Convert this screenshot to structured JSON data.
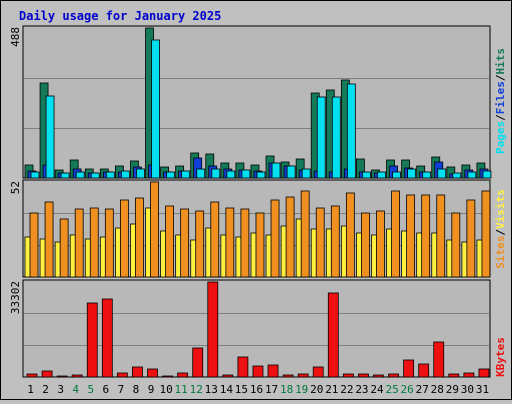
{
  "title": "Daily usage for January 2025",
  "colors": {
    "background": "#C0C0C0",
    "plot_bg": "#B8B8B8",
    "title": "#0000CC",
    "hits": "#157A5A",
    "files": "#1040D8",
    "pages": "#00E0F0",
    "visits": "#F09020",
    "sites": "#FFF040",
    "kbytes": "#EE1010",
    "weekend_label": "#007A3D",
    "grid": "#808080"
  },
  "chart_data": [
    {
      "type": "bar",
      "name": "hits-files-pages",
      "categories": [
        "1",
        "2",
        "3",
        "4",
        "5",
        "6",
        "7",
        "8",
        "9",
        "10",
        "11",
        "12",
        "13",
        "14",
        "15",
        "16",
        "17",
        "18",
        "19",
        "20",
        "21",
        "22",
        "23",
        "24",
        "25",
        "26",
        "27",
        "28",
        "29",
        "30",
        "31"
      ],
      "series": [
        {
          "name": "Hits",
          "values": [
            42,
            310,
            26,
            58,
            30,
            28,
            38,
            55,
            488,
            36,
            40,
            80,
            78,
            48,
            48,
            42,
            70,
            52,
            62,
            275,
            285,
            318,
            62,
            26,
            60,
            60,
            40,
            68,
            35,
            42,
            48
          ]
        },
        {
          "name": "Files",
          "values": [
            22,
            42,
            16,
            30,
            16,
            18,
            20,
            35,
            42,
            18,
            24,
            65,
            40,
            28,
            26,
            22,
            48,
            40,
            26,
            22,
            18,
            30,
            18,
            16,
            38,
            32,
            18,
            52,
            14,
            26,
            28
          ]
        },
        {
          "name": "Pages",
          "values": [
            20,
            268,
            16,
            18,
            16,
            18,
            22,
            28,
            450,
            18,
            22,
            30,
            30,
            22,
            26,
            20,
            48,
            38,
            30,
            262,
            262,
            305,
            18,
            20,
            18,
            30,
            20,
            30,
            16,
            20,
            22
          ]
        }
      ],
      "ylim": [
        0,
        488
      ],
      "ylabel": "488",
      "right_labels": [
        "Pages",
        "Files",
        "Hits"
      ]
    },
    {
      "type": "bar",
      "name": "visits-sites",
      "categories": [
        "1",
        "2",
        "3",
        "4",
        "5",
        "6",
        "7",
        "8",
        "9",
        "10",
        "11",
        "12",
        "13",
        "14",
        "15",
        "16",
        "17",
        "18",
        "19",
        "20",
        "21",
        "22",
        "23",
        "24",
        "25",
        "26",
        "27",
        "28",
        "29",
        "30",
        "31"
      ],
      "series": [
        {
          "name": "Sites",
          "values": [
            22,
            21,
            19,
            23,
            21,
            22,
            27,
            29,
            38,
            25,
            23,
            20,
            27,
            23,
            22,
            24,
            23,
            28,
            32,
            26,
            26,
            28,
            24,
            23,
            26,
            25,
            24,
            24,
            20,
            19,
            20
          ]
        },
        {
          "name": "Visits",
          "values": [
            35,
            41,
            32,
            37,
            38,
            37,
            42,
            43,
            52,
            39,
            37,
            36,
            41,
            38,
            37,
            35,
            42,
            44,
            47,
            38,
            39,
            46,
            35,
            36,
            47,
            45,
            45,
            45,
            35,
            42,
            47
          ]
        }
      ],
      "ylim": [
        0,
        52
      ],
      "ylabel": "52",
      "right_labels": [
        "Sites",
        "Visits"
      ]
    },
    {
      "type": "bar",
      "name": "kbytes",
      "categories": [
        "1",
        "2",
        "3",
        "4",
        "5",
        "6",
        "7",
        "8",
        "9",
        "10",
        "11",
        "12",
        "13",
        "14",
        "15",
        "16",
        "17",
        "18",
        "19",
        "20",
        "21",
        "22",
        "23",
        "24",
        "25",
        "26",
        "27",
        "28",
        "29",
        "30",
        "31"
      ],
      "series": [
        {
          "name": "KBytes",
          "values": [
            900,
            2200,
            400,
            800,
            26000,
            27300,
            1300,
            3500,
            2700,
            400,
            1300,
            10100,
            33302,
            800,
            7100,
            4000,
            4200,
            800,
            1200,
            3600,
            29300,
            1200,
            1200,
            600,
            1000,
            6100,
            4400,
            12400,
            1200,
            1300,
            2800
          ]
        }
      ],
      "ylim": [
        0,
        33302
      ],
      "ylabel": "33302",
      "right_labels": [
        "KBytes"
      ]
    }
  ],
  "weekend_days": [
    4,
    5,
    11,
    12,
    18,
    19,
    25,
    26
  ]
}
